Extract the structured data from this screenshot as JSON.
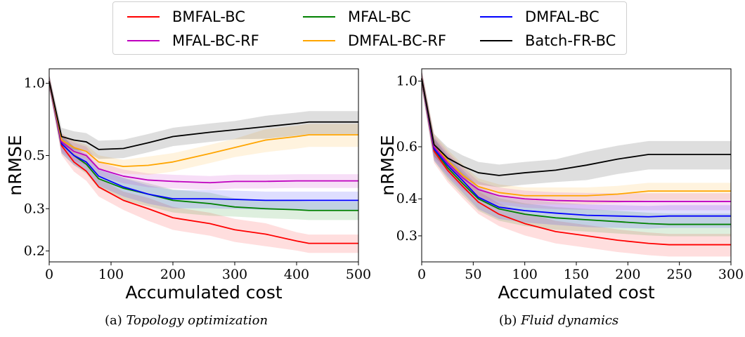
{
  "legend": {
    "entries": [
      {
        "name": "BMFAL-BC",
        "color": "#ff0000"
      },
      {
        "name": "MFAL-BC",
        "color": "#008000"
      },
      {
        "name": "DMFAL-BC",
        "color": "#0000ff"
      },
      {
        "name": "MFAL-BC-RF",
        "color": "#bf00bf"
      },
      {
        "name": "DMFAL-BC-RF",
        "color": "#ffa500"
      },
      {
        "name": "Batch-FR-BC",
        "color": "#000000"
      }
    ]
  },
  "captions": [
    {
      "prefix": "(a) ",
      "title": "Topology optimization"
    },
    {
      "prefix": "(b) ",
      "title": "Fluid dynamics"
    }
  ],
  "chart_data": [
    {
      "type": "line",
      "xlabel": "Accumulated cost",
      "ylabel": "nRMSE",
      "xlim": [
        0,
        500
      ],
      "ylim": [
        0.18,
        1.15
      ],
      "yscale": "log",
      "xticks": [
        0,
        100,
        200,
        300,
        400,
        500
      ],
      "yticks": [
        {
          "value": 1.0,
          "label": "1.0"
        },
        {
          "value": 0.5,
          "label": "0.5"
        },
        {
          "value": 0.3,
          "label": "0.3"
        },
        {
          "value": 0.2,
          "label": "0.2"
        }
      ],
      "grid": false,
      "series": [
        {
          "name": "BMFAL-BC",
          "color": "#ff0000",
          "x": [
            0,
            20,
            40,
            60,
            80,
            120,
            160,
            200,
            260,
            300,
            350,
            400,
            420,
            500
          ],
          "y": [
            1.02,
            0.55,
            0.47,
            0.43,
            0.37,
            0.325,
            0.3,
            0.275,
            0.26,
            0.245,
            0.235,
            0.22,
            0.215,
            0.215
          ],
          "band": [
            0.03,
            0.04,
            0.04,
            0.04,
            0.04,
            0.04,
            0.05,
            0.05,
            0.05,
            0.05,
            0.05,
            0.04,
            0.04,
            0.04
          ]
        },
        {
          "name": "MFAL-BC",
          "color": "#008000",
          "x": [
            0,
            20,
            40,
            60,
            80,
            120,
            160,
            200,
            260,
            300,
            350,
            400,
            420,
            500
          ],
          "y": [
            1.02,
            0.56,
            0.5,
            0.46,
            0.4,
            0.365,
            0.345,
            0.325,
            0.315,
            0.305,
            0.3,
            0.297,
            0.295,
            0.295
          ],
          "band": [
            0.03,
            0.04,
            0.04,
            0.04,
            0.04,
            0.05,
            0.05,
            0.05,
            0.05,
            0.04,
            0.04,
            0.04,
            0.04,
            0.04
          ]
        },
        {
          "name": "DMFAL-BC",
          "color": "#0000ff",
          "x": [
            0,
            20,
            40,
            60,
            80,
            120,
            160,
            200,
            260,
            300,
            350,
            400,
            420,
            500
          ],
          "y": [
            1.02,
            0.56,
            0.5,
            0.47,
            0.41,
            0.37,
            0.345,
            0.33,
            0.33,
            0.328,
            0.325,
            0.325,
            0.325,
            0.325
          ],
          "band": [
            0.03,
            0.04,
            0.04,
            0.04,
            0.04,
            0.04,
            0.04,
            0.04,
            0.04,
            0.04,
            0.04,
            0.04,
            0.04,
            0.04
          ]
        },
        {
          "name": "MFAL-BC-RF",
          "color": "#bf00bf",
          "x": [
            0,
            20,
            40,
            60,
            80,
            120,
            160,
            200,
            260,
            300,
            350,
            400,
            420,
            500
          ],
          "y": [
            1.02,
            0.57,
            0.52,
            0.5,
            0.44,
            0.41,
            0.395,
            0.39,
            0.385,
            0.39,
            0.39,
            0.392,
            0.392,
            0.392
          ],
          "band": [
            0.03,
            0.04,
            0.04,
            0.04,
            0.03,
            0.03,
            0.03,
            0.03,
            0.03,
            0.03,
            0.03,
            0.03,
            0.03,
            0.03
          ]
        },
        {
          "name": "DMFAL-BC-RF",
          "color": "#ffa500",
          "x": [
            0,
            20,
            40,
            60,
            80,
            120,
            160,
            200,
            260,
            300,
            350,
            400,
            420,
            500
          ],
          "y": [
            1.02,
            0.58,
            0.54,
            0.52,
            0.47,
            0.45,
            0.455,
            0.47,
            0.51,
            0.54,
            0.58,
            0.6,
            0.61,
            0.61
          ],
          "band": [
            0.03,
            0.03,
            0.03,
            0.03,
            0.03,
            0.03,
            0.04,
            0.04,
            0.04,
            0.04,
            0.05,
            0.05,
            0.05,
            0.05
          ]
        },
        {
          "name": "Batch-FR-BC",
          "color": "#000000",
          "x": [
            0,
            20,
            40,
            60,
            80,
            120,
            160,
            200,
            260,
            300,
            350,
            400,
            420,
            500
          ],
          "y": [
            1.02,
            0.6,
            0.58,
            0.57,
            0.53,
            0.535,
            0.565,
            0.6,
            0.625,
            0.64,
            0.66,
            0.68,
            0.69,
            0.69
          ],
          "band": [
            0.03,
            0.04,
            0.04,
            0.04,
            0.04,
            0.04,
            0.04,
            0.04,
            0.04,
            0.04,
            0.05,
            0.05,
            0.05,
            0.05
          ]
        }
      ]
    },
    {
      "type": "line",
      "xlabel": "Accumulated cost",
      "ylabel": "nRMSE",
      "xlim": [
        0,
        300
      ],
      "ylim": [
        0.245,
        1.1
      ],
      "yscale": "log",
      "xticks": [
        0,
        50,
        100,
        150,
        200,
        250,
        300
      ],
      "yticks": [
        {
          "value": 1.0,
          "label": "1.0"
        },
        {
          "value": 0.6,
          "label": "0.6"
        },
        {
          "value": 0.4,
          "label": "0.4"
        },
        {
          "value": 0.3,
          "label": "0.3"
        }
      ],
      "grid": false,
      "series": [
        {
          "name": "BMFAL-BC",
          "color": "#ff0000",
          "x": [
            0,
            12,
            25,
            40,
            55,
            75,
            100,
            130,
            160,
            190,
            220,
            240,
            300
          ],
          "y": [
            1.02,
            0.58,
            0.5,
            0.44,
            0.39,
            0.355,
            0.33,
            0.31,
            0.3,
            0.29,
            0.283,
            0.28,
            0.28
          ],
          "band": [
            0.03,
            0.04,
            0.04,
            0.04,
            0.04,
            0.04,
            0.04,
            0.04,
            0.04,
            0.04,
            0.04,
            0.04,
            0.04
          ]
        },
        {
          "name": "MFAL-BC",
          "color": "#008000",
          "x": [
            0,
            12,
            25,
            40,
            55,
            75,
            100,
            130,
            160,
            190,
            220,
            240,
            300
          ],
          "y": [
            1.02,
            0.59,
            0.51,
            0.45,
            0.4,
            0.37,
            0.355,
            0.345,
            0.34,
            0.335,
            0.33,
            0.328,
            0.328
          ],
          "band": [
            0.03,
            0.04,
            0.04,
            0.04,
            0.04,
            0.04,
            0.04,
            0.04,
            0.04,
            0.04,
            0.04,
            0.04,
            0.04
          ]
        },
        {
          "name": "DMFAL-BC",
          "color": "#0000ff",
          "x": [
            0,
            12,
            25,
            40,
            55,
            75,
            100,
            130,
            160,
            190,
            220,
            240,
            300
          ],
          "y": [
            1.02,
            0.59,
            0.52,
            0.46,
            0.405,
            0.375,
            0.365,
            0.358,
            0.352,
            0.35,
            0.348,
            0.35,
            0.35
          ],
          "band": [
            0.03,
            0.04,
            0.04,
            0.04,
            0.04,
            0.04,
            0.04,
            0.04,
            0.04,
            0.04,
            0.04,
            0.04,
            0.04
          ]
        },
        {
          "name": "MFAL-BC-RF",
          "color": "#bf00bf",
          "x": [
            0,
            12,
            25,
            40,
            55,
            75,
            100,
            130,
            160,
            190,
            220,
            240,
            300
          ],
          "y": [
            1.02,
            0.6,
            0.53,
            0.47,
            0.43,
            0.41,
            0.4,
            0.395,
            0.393,
            0.392,
            0.392,
            0.392,
            0.392
          ],
          "band": [
            0.03,
            0.04,
            0.04,
            0.04,
            0.03,
            0.03,
            0.03,
            0.03,
            0.03,
            0.03,
            0.03,
            0.03,
            0.03
          ]
        },
        {
          "name": "DMFAL-BC-RF",
          "color": "#ffa500",
          "x": [
            0,
            12,
            25,
            40,
            55,
            75,
            100,
            130,
            160,
            190,
            220,
            240,
            300
          ],
          "y": [
            1.02,
            0.61,
            0.54,
            0.48,
            0.44,
            0.42,
            0.41,
            0.41,
            0.41,
            0.415,
            0.425,
            0.425,
            0.425
          ],
          "band": [
            0.03,
            0.04,
            0.04,
            0.04,
            0.03,
            0.03,
            0.03,
            0.03,
            0.03,
            0.03,
            0.03,
            0.03,
            0.03
          ]
        },
        {
          "name": "Batch-FR-BC",
          "color": "#000000",
          "x": [
            0,
            12,
            25,
            40,
            55,
            75,
            100,
            130,
            160,
            190,
            220,
            240,
            300
          ],
          "y": [
            1.02,
            0.61,
            0.55,
            0.515,
            0.49,
            0.48,
            0.49,
            0.5,
            0.52,
            0.545,
            0.565,
            0.565,
            0.565
          ],
          "band": [
            0.03,
            0.04,
            0.04,
            0.04,
            0.04,
            0.04,
            0.04,
            0.04,
            0.05,
            0.05,
            0.05,
            0.05,
            0.05
          ]
        }
      ]
    }
  ]
}
